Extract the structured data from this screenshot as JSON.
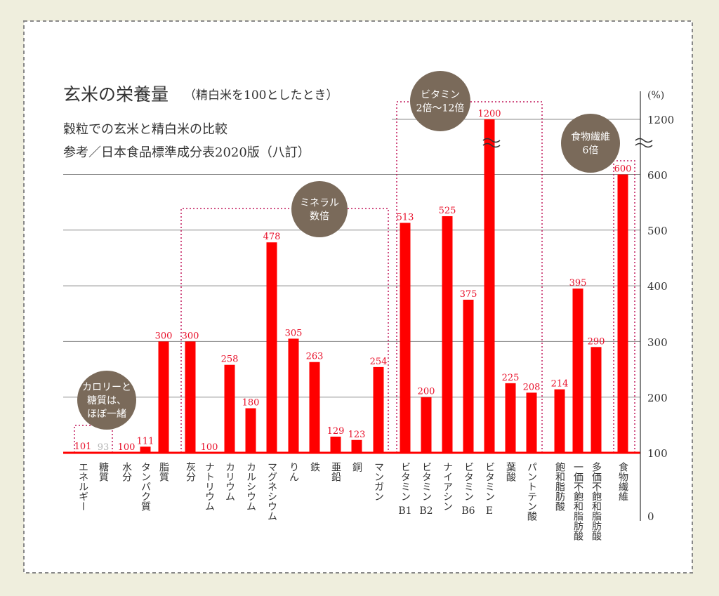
{
  "chart_data": {
    "type": "bar",
    "title": "玄米の栄養量",
    "title_note": "（精白米を100としたとき）",
    "subtitle": "穀粒での玄米と精白米の比較",
    "source": "参考／日本食品標準成分表2020版（八訂）",
    "ylabel": "(%)",
    "ylim": [
      0,
      1200
    ],
    "y_ticks": [
      "0",
      "100",
      "200",
      "300",
      "400",
      "500",
      "600",
      "1200"
    ],
    "axis_break": true,
    "grid": true,
    "bar_color": "#ff0000",
    "label_color": "#e8102a",
    "muted_label_color": "#b5b5b5",
    "categories": [
      "エネルギー",
      "糖質",
      "水分",
      "タンパク質",
      "脂質",
      "灰分",
      "ナトリウム",
      "カリウム",
      "カルシウム",
      "マグネシウム",
      "りん",
      "鉄",
      "亜鉛",
      "銅",
      "マンガン",
      "ビタミンB1",
      "ビタミンB2",
      "ナイアシン",
      "ビタミンB6",
      "ビタミンE",
      "葉酸",
      "パントテン酸",
      "飽和脂肪酸",
      "一価不飽和脂肪酸",
      "多価不飽和脂肪酸",
      "食物繊維"
    ],
    "values": [
      101,
      93,
      100,
      111,
      300,
      300,
      100,
      258,
      180,
      478,
      305,
      263,
      129,
      123,
      254,
      513,
      200,
      525,
      375,
      1200,
      225,
      208,
      214,
      395,
      290,
      600
    ],
    "value_labels": [
      "101",
      "93",
      "100",
      "111",
      "300",
      "300",
      "100",
      "258",
      "180",
      "478",
      "305",
      "263",
      "129",
      "123",
      "254",
      "513",
      "200",
      "525",
      "375",
      "1200",
      "225",
      "208",
      "214",
      "395",
      "290",
      "600"
    ],
    "category_labels_upper": [
      "",
      "",
      "",
      "",
      "",
      "",
      "",
      "",
      "",
      "",
      "",
      "",
      "",
      "",
      "",
      "ビタミン",
      "ビタミン",
      "",
      "ビタミン",
      "ビタミン",
      "",
      "",
      "",
      "",
      "",
      ""
    ],
    "category_labels_lower": [
      "エネルギー",
      "糖質",
      "水分",
      "タンパク質",
      "脂質",
      "灰分",
      "ナトリウム",
      "カリウム",
      "カルシウム",
      "マグネシウム",
      "りん",
      "鉄",
      "亜鉛",
      "銅",
      "マンガン",
      "B1",
      "B2",
      "ナイアシン",
      "B6",
      "E",
      "葉酸",
      "パントテン酸",
      "飽和脂肪酸",
      "一価不飽和脂肪酸",
      "多価不飽和脂肪酸",
      "食物繊維"
    ],
    "annotations": [
      {
        "text": [
          "カロリーと",
          "糖質は、",
          "ほぼ一緒"
        ]
      },
      {
        "text": [
          "ミネラル",
          "数倍"
        ]
      },
      {
        "text": [
          "ビタミン",
          "2倍〜12倍"
        ]
      },
      {
        "text": [
          "食物繊維",
          "6倍"
        ]
      }
    ],
    "badge_color": "#7a6a5a"
  }
}
